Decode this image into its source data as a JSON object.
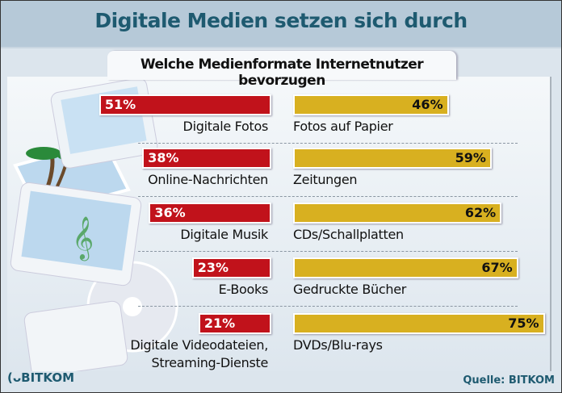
{
  "title": "Digitale Medien setzen sich durch",
  "chart_data": {
    "type": "bar",
    "title": "Welche Medienformate Internetnutzer bevorzugen",
    "categories": [
      "Digitale Fotos / Fotos auf Papier",
      "Online-Nachrichten / Zeitungen",
      "Digitale Musik / CDs/Schallplatten",
      "E-Books / Gedruckte Bücher",
      "Digitale Videodateien, Streaming-Dienste / DVDs/Blu-rays"
    ],
    "rows": [
      {
        "digital_label": "Digitale Fotos",
        "digital_value": 51,
        "digital_text": "51%",
        "physical_label": "Fotos auf Papier",
        "physical_value": 46,
        "physical_text": "46%"
      },
      {
        "digital_label": "Online-Nachrichten",
        "digital_value": 38,
        "digital_text": "38%",
        "physical_label": "Zeitungen",
        "physical_value": 59,
        "physical_text": "59%"
      },
      {
        "digital_label": "Digitale Musik",
        "digital_value": 36,
        "digital_text": "36%",
        "physical_label": "CDs/Schallplatten",
        "physical_value": 62,
        "physical_text": "62%"
      },
      {
        "digital_label": "E-Books",
        "digital_value": 23,
        "digital_text": "23%",
        "physical_label": "Gedruckte Bücher",
        "physical_value": 67,
        "physical_text": "67%"
      },
      {
        "digital_label": "Digitale Videodateien,",
        "digital_label2": "Streaming-Dienste",
        "digital_value": 21,
        "digital_text": "21%",
        "physical_label": "DVDs/Blu-rays",
        "physical_value": 75,
        "physical_text": "75%"
      }
    ],
    "unit": "%",
    "colors": {
      "digital": "#c1121b",
      "physical": "#d8b020"
    },
    "grid": false
  },
  "logo": "BITKOM",
  "source": "Quelle: BITKOM"
}
